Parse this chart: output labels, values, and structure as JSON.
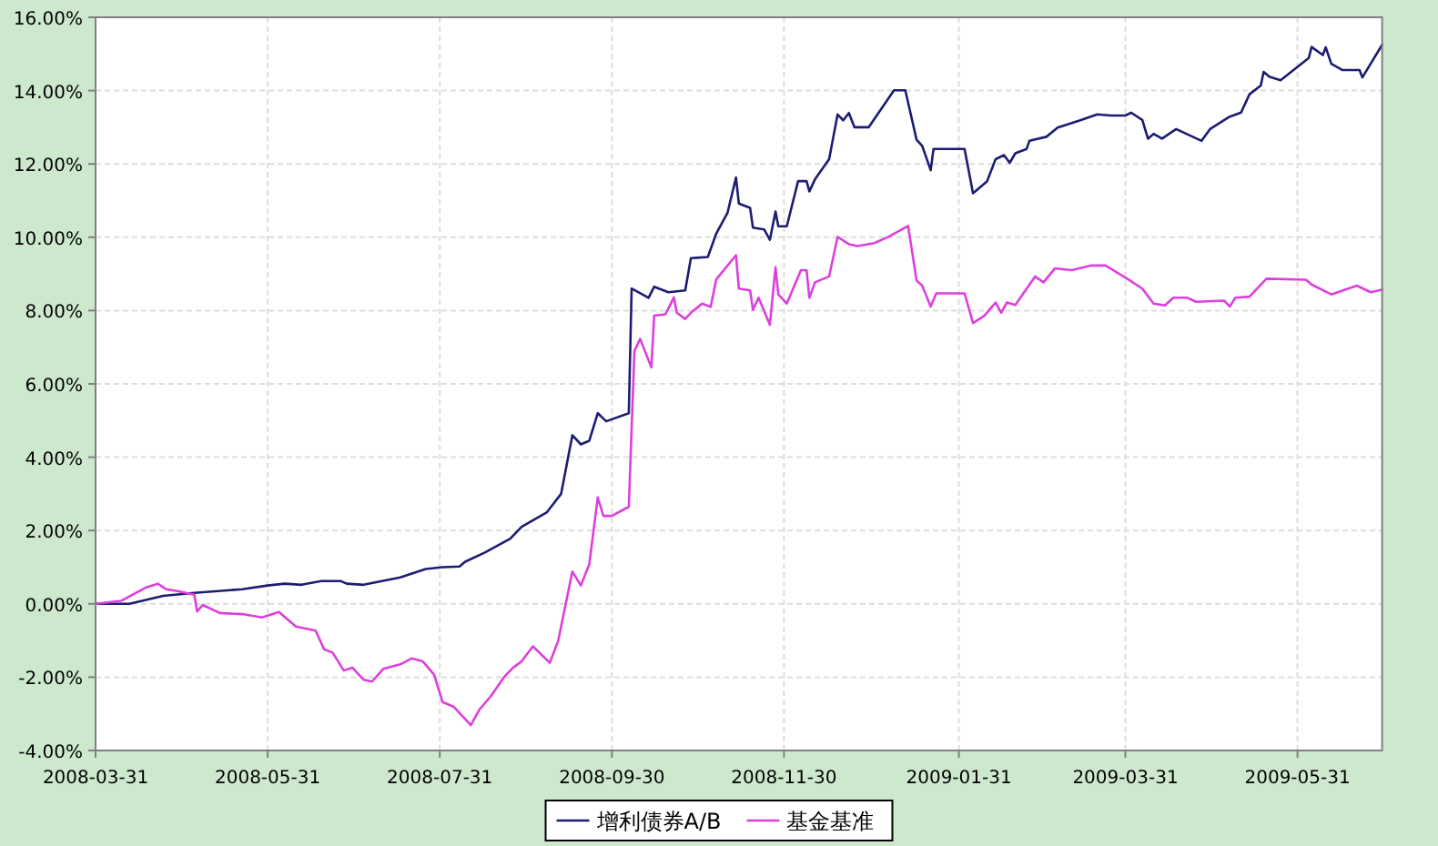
{
  "chart_data": {
    "type": "line",
    "xlim": [
      "2008-03-31",
      "2009-06-30"
    ],
    "ylim": [
      -4,
      16
    ],
    "xticks": [
      "2008-03-31",
      "2008-05-31",
      "2008-07-31",
      "2008-09-30",
      "2008-11-30",
      "2009-01-31",
      "2009-03-31",
      "2009-05-31"
    ],
    "yticks": [
      {
        "value": -4,
        "label": "-4.00%"
      },
      {
        "value": -2,
        "label": "-2.00%"
      },
      {
        "value": 0,
        "label": "0.00%"
      },
      {
        "value": 2,
        "label": "2.00%"
      },
      {
        "value": 4,
        "label": "4.00%"
      },
      {
        "value": 6,
        "label": "6.00%"
      },
      {
        "value": 8,
        "label": "8.00%"
      },
      {
        "value": 10,
        "label": "10.00%"
      },
      {
        "value": 12,
        "label": "12.00%"
      },
      {
        "value": 14,
        "label": "14.00%"
      },
      {
        "value": 16,
        "label": "16.00%"
      }
    ],
    "grid": true,
    "legend": "bottom",
    "series": [
      {
        "name": "增利债券A/B",
        "color": "#1c1c72",
        "x": [
          "2008-03-31",
          "2008-04-12",
          "2008-04-24",
          "2008-05-05",
          "2008-05-22",
          "2008-05-31",
          "2008-06-06",
          "2008-06-12",
          "2008-06-19",
          "2008-06-26",
          "2008-06-28",
          "2008-07-04",
          "2008-07-17",
          "2008-07-26",
          "2008-08-01",
          "2008-08-07",
          "2008-08-09",
          "2008-08-16",
          "2008-08-25",
          "2008-08-29",
          "2008-09-07",
          "2008-09-12",
          "2008-09-16",
          "2008-09-19",
          "2008-09-22",
          "2008-09-25",
          "2008-09-28",
          "2008-10-06",
          "2008-10-07",
          "2008-10-13",
          "2008-10-15",
          "2008-10-20",
          "2008-10-26",
          "2008-10-28",
          "2008-11-03",
          "2008-11-06",
          "2008-11-10",
          "2008-11-13",
          "2008-11-14",
          "2008-11-18",
          "2008-11-19",
          "2008-11-23",
          "2008-11-25",
          "2008-11-27",
          "2008-11-28",
          "2008-12-01",
          "2008-12-05",
          "2008-12-08",
          "2008-12-09",
          "2008-12-11",
          "2008-12-16",
          "2008-12-19",
          "2008-12-21",
          "2008-12-23",
          "2008-12-25",
          "2008-12-30",
          "2009-01-08",
          "2009-01-12",
          "2009-01-16",
          "2009-01-18",
          "2009-01-21",
          "2009-01-22",
          "2009-02-02",
          "2009-02-05",
          "2009-02-10",
          "2009-02-13",
          "2009-02-16",
          "2009-02-18",
          "2009-02-20",
          "2009-02-24",
          "2009-02-25",
          "2009-03-03",
          "2009-03-07",
          "2009-03-15",
          "2009-03-21",
          "2009-03-26",
          "2009-03-31",
          "2009-04-02",
          "2009-04-06",
          "2009-04-08",
          "2009-04-10",
          "2009-04-13",
          "2009-04-18",
          "2009-04-27",
          "2009-04-30",
          "2009-05-07",
          "2009-05-11",
          "2009-05-14",
          "2009-05-18",
          "2009-05-19",
          "2009-05-21",
          "2009-05-25",
          "2009-06-04",
          "2009-06-05",
          "2009-06-09",
          "2009-06-10",
          "2009-06-12",
          "2009-06-16",
          "2009-06-22",
          "2009-06-23",
          "2009-06-30"
        ],
        "values": [
          0,
          0,
          0.22,
          0.3,
          0.4,
          0.5,
          0.55,
          0.52,
          0.62,
          0.62,
          0.55,
          0.52,
          0.72,
          0.95,
          1.0,
          1.02,
          1.15,
          1.4,
          1.78,
          2.1,
          2.5,
          3.0,
          4.6,
          4.35,
          4.45,
          5.2,
          4.98,
          5.2,
          8.6,
          8.35,
          8.65,
          8.5,
          8.55,
          9.43,
          9.46,
          10.1,
          10.67,
          11.63,
          10.92,
          10.8,
          10.26,
          10.21,
          9.93,
          10.7,
          10.3,
          10.3,
          11.53,
          11.53,
          11.25,
          11.58,
          12.13,
          13.35,
          13.19,
          13.39,
          13.0,
          13.0,
          14.01,
          14.01,
          12.66,
          12.49,
          11.83,
          12.41,
          12.41,
          11.2,
          11.53,
          12.13,
          12.24,
          12.03,
          12.29,
          12.41,
          12.63,
          12.74,
          12.99,
          13.19,
          13.35,
          13.32,
          13.32,
          13.4,
          13.2,
          12.69,
          12.82,
          12.69,
          12.95,
          12.63,
          12.95,
          13.29,
          13.4,
          13.9,
          14.14,
          14.51,
          14.38,
          14.28,
          14.89,
          15.19,
          14.97,
          15.18,
          14.73,
          14.56,
          14.56,
          14.36,
          15.25
        ]
      },
      {
        "name": "基金基准",
        "color": "#dd3fdd",
        "x": [
          "2008-03-31",
          "2008-04-09",
          "2008-04-18",
          "2008-04-22",
          "2008-04-25",
          "2008-04-29",
          "2008-05-05",
          "2008-05-06",
          "2008-05-08",
          "2008-05-14",
          "2008-05-22",
          "2008-05-29",
          "2008-06-04",
          "2008-06-10",
          "2008-06-17",
          "2008-06-20",
          "2008-06-23",
          "2008-06-27",
          "2008-06-30",
          "2008-07-04",
          "2008-07-07",
          "2008-07-11",
          "2008-07-17",
          "2008-07-21",
          "2008-07-25",
          "2008-07-29",
          "2008-08-01",
          "2008-08-05",
          "2008-08-08",
          "2008-08-11",
          "2008-08-14",
          "2008-08-18",
          "2008-08-23",
          "2008-08-26",
          "2008-08-29",
          "2008-09-02",
          "2008-09-08",
          "2008-09-11",
          "2008-09-16",
          "2008-09-19",
          "2008-09-22",
          "2008-09-25",
          "2008-09-27",
          "2008-09-30",
          "2008-10-06",
          "2008-10-08",
          "2008-10-10",
          "2008-10-14",
          "2008-10-15",
          "2008-10-19",
          "2008-10-22",
          "2008-10-23",
          "2008-10-26",
          "2008-10-28",
          "2008-11-01",
          "2008-11-04",
          "2008-11-06",
          "2008-11-13",
          "2008-11-14",
          "2008-11-18",
          "2008-11-19",
          "2008-11-21",
          "2008-11-25",
          "2008-11-27",
          "2008-11-28",
          "2008-12-01",
          "2008-12-06",
          "2008-12-08",
          "2008-12-09",
          "2008-12-11",
          "2008-12-16",
          "2008-12-19",
          "2008-12-23",
          "2008-12-26",
          "2009-01-01",
          "2009-01-06",
          "2009-01-13",
          "2009-01-16",
          "2009-01-18",
          "2009-01-21",
          "2009-01-23",
          "2009-02-02",
          "2009-02-05",
          "2009-02-09",
          "2009-02-13",
          "2009-02-15",
          "2009-02-17",
          "2009-02-20",
          "2009-02-27",
          "2009-03-02",
          "2009-03-06",
          "2009-03-12",
          "2009-03-19",
          "2009-03-24",
          "2009-04-01",
          "2009-04-06",
          "2009-04-10",
          "2009-04-14",
          "2009-04-17",
          "2009-04-22",
          "2009-04-25",
          "2009-05-05",
          "2009-05-07",
          "2009-05-09",
          "2009-05-14",
          "2009-05-20",
          "2009-06-03",
          "2009-06-05",
          "2009-06-12",
          "2009-06-21",
          "2009-06-26",
          "2009-06-30"
        ],
        "values": [
          0,
          0.08,
          0.45,
          0.55,
          0.4,
          0.35,
          0.25,
          -0.21,
          -0.03,
          -0.25,
          -0.28,
          -0.37,
          -0.22,
          -0.62,
          -0.73,
          -1.24,
          -1.33,
          -1.82,
          -1.74,
          -2.07,
          -2.12,
          -1.77,
          -1.65,
          -1.49,
          -1.57,
          -1.93,
          -2.68,
          -2.81,
          -3.06,
          -3.31,
          -2.89,
          -2.53,
          -1.98,
          -1.74,
          -1.57,
          -1.16,
          -1.61,
          -1.0,
          0.88,
          0.5,
          1.08,
          2.9,
          2.4,
          2.4,
          2.65,
          6.9,
          7.23,
          6.45,
          7.86,
          7.9,
          8.36,
          7.94,
          7.77,
          7.94,
          8.19,
          8.1,
          8.85,
          9.51,
          8.6,
          8.55,
          8.02,
          8.35,
          7.61,
          9.18,
          8.44,
          8.19,
          9.1,
          9.1,
          8.35,
          8.77,
          8.93,
          10.01,
          9.81,
          9.76,
          9.84,
          10.01,
          10.31,
          8.82,
          8.68,
          8.11,
          8.47,
          8.47,
          7.66,
          7.86,
          8.22,
          7.94,
          8.22,
          8.15,
          8.93,
          8.77,
          9.15,
          9.1,
          9.23,
          9.23,
          8.85,
          8.6,
          8.19,
          8.14,
          8.35,
          8.35,
          8.24,
          8.27,
          8.11,
          8.35,
          8.38,
          8.87,
          8.84,
          8.71,
          8.44,
          8.68,
          8.5,
          8.57
        ]
      }
    ]
  }
}
